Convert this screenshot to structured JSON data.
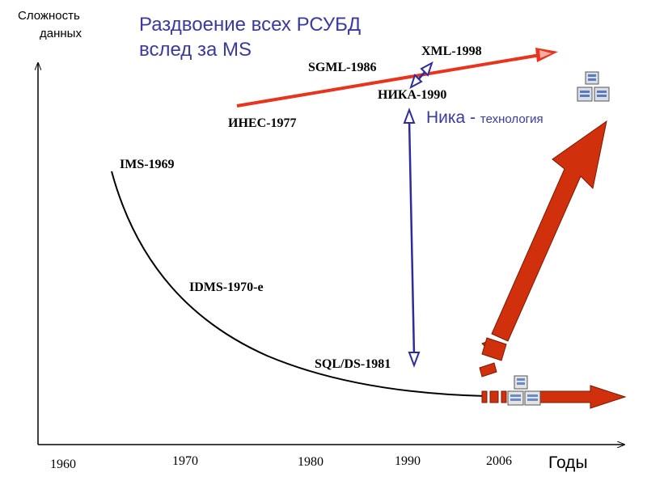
{
  "y_axis_label_line1": "Сложность",
  "y_axis_label_line2": "данных",
  "x_axis_label": "Годы",
  "x_ticks": [
    "1960",
    "1970",
    "1980",
    "1990",
    "2006"
  ],
  "title_line1": "Раздвоение всех РСУБД",
  "title_line2": "вслед за MS",
  "milestones": {
    "ims": "IMS-1969",
    "idms": "IDMS-1970-е",
    "sql": "SQL/DS-1981",
    "ines": "ИНЕС-1977",
    "sgml": "SGML-1986",
    "xml": "XML-1998",
    "nika": "НИКА-1990"
  },
  "nika_tech_main": "Ника - ",
  "nika_tech_small": "технология",
  "colors": {
    "red_line": "#e8341c",
    "big_arrow": "#d0300c",
    "blue": "#2c2c9c",
    "title": "#3a3aa0",
    "axis": "#000000"
  },
  "icons": [
    "database-stack-icon-top",
    "database-stack-icon-bottom"
  ]
}
